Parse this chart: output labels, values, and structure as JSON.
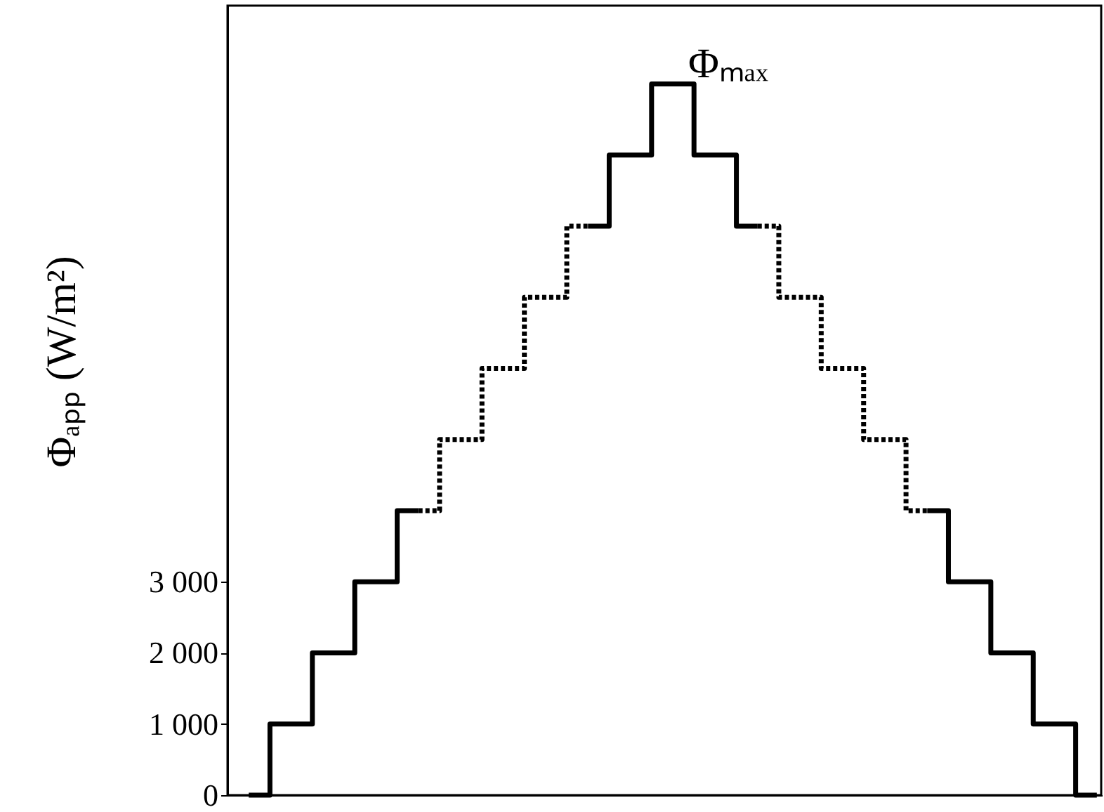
{
  "chart_data": {
    "type": "step",
    "ylabel": "Φₐₚₚ (W/m²)",
    "categories": [
      null,
      null,
      null,
      null,
      null,
      null,
      null,
      null,
      null,
      null,
      null,
      null,
      null,
      null,
      null,
      null,
      null,
      null,
      null,
      null,
      null
    ],
    "ylim": [
      0,
      11100
    ],
    "yticks": [
      0,
      {
        "value": 1000,
        "label": "1 000"
      },
      {
        "value": 2000,
        "label": "2 000"
      },
      {
        "value": 3000,
        "label": "3 000"
      }
    ],
    "grid": false,
    "series": [
      {
        "color": "#000000",
        "line_style": "solid",
        "values": [
          0,
          1000,
          2000,
          3000,
          4000,
          null,
          null,
          null,
          8000,
          9000,
          10000,
          9000,
          8000,
          null,
          null,
          null,
          4000,
          3000,
          2000,
          1000,
          0
        ]
      },
      {
        "color": "#000000",
        "line_style": "dotted",
        "values": [
          null,
          null,
          null,
          null,
          4000,
          5000,
          6000,
          7000,
          8000,
          null,
          null,
          null,
          8000,
          7000,
          6000,
          5000,
          4000,
          null,
          null,
          null,
          null
        ]
      }
    ],
    "annotations": [
      "Φₘₐₓ"
    ]
  }
}
